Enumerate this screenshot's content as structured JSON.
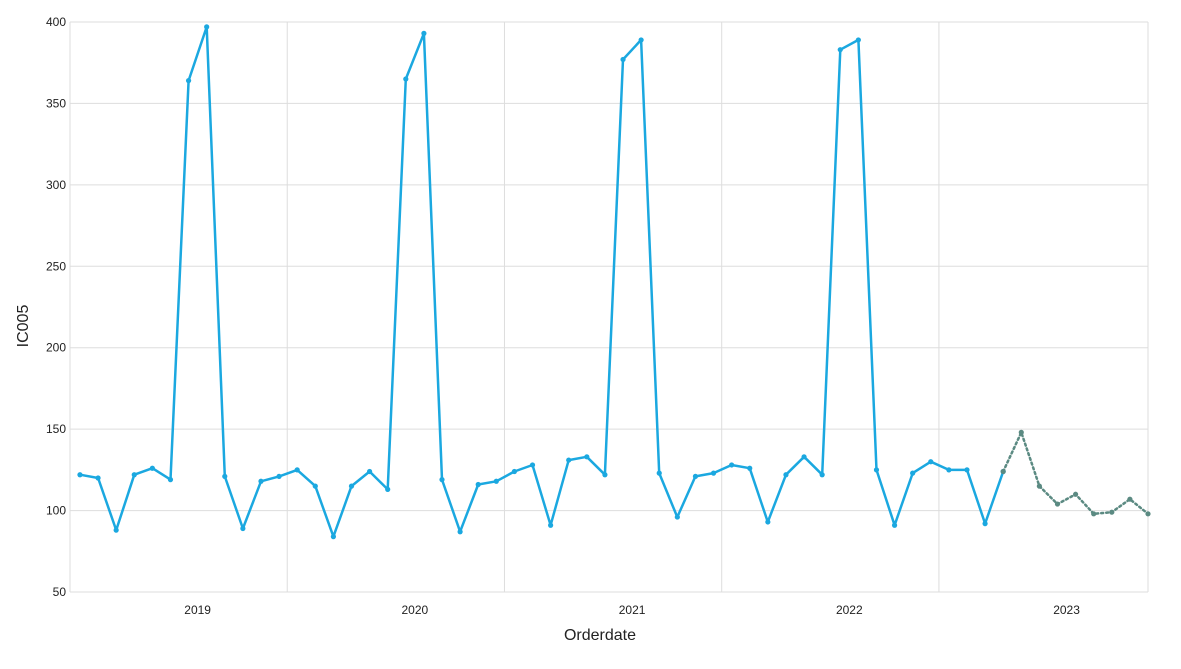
{
  "chart_data": {
    "type": "line",
    "xlabel": "Orderdate",
    "ylabel": "IC005",
    "ylim": [
      50,
      400
    ],
    "y_ticks": [
      50,
      100,
      150,
      200,
      250,
      300,
      350,
      400
    ],
    "x_tick_labels": [
      "2019",
      "2020",
      "2021",
      "2022",
      "2023"
    ],
    "grid": true,
    "colors": {
      "actual": "#1ba8e0",
      "forecast": "#5b8a82",
      "grid": "#dddddd"
    },
    "series": [
      {
        "style": "solid",
        "x": [
          "2018-07",
          "2018-08",
          "2018-09",
          "2018-10",
          "2018-11",
          "2018-12",
          "2019-01",
          "2019-02",
          "2019-03",
          "2019-04",
          "2019-05",
          "2019-06",
          "2019-07",
          "2019-08",
          "2019-09",
          "2019-10",
          "2019-11",
          "2019-12",
          "2020-01",
          "2020-02",
          "2020-03",
          "2020-04",
          "2020-05",
          "2020-06",
          "2020-07",
          "2020-08",
          "2020-09",
          "2020-10",
          "2020-11",
          "2020-12",
          "2021-01",
          "2021-02",
          "2021-03",
          "2021-04",
          "2021-05",
          "2021-06",
          "2021-07",
          "2021-08",
          "2021-09",
          "2021-10",
          "2021-11",
          "2021-12",
          "2022-01",
          "2022-02",
          "2022-03",
          "2022-04",
          "2022-05",
          "2022-06",
          "2022-07",
          "2022-08",
          "2022-09",
          "2022-10"
        ],
        "values": [
          122,
          120,
          88,
          122,
          126,
          119,
          364,
          397,
          121,
          89,
          118,
          121,
          125,
          115,
          84,
          115,
          124,
          113,
          365,
          393,
          119,
          87,
          116,
          118,
          124,
          128,
          91,
          131,
          133,
          122,
          377,
          389,
          123,
          96,
          121,
          123,
          128,
          126,
          93,
          122,
          133,
          122,
          383,
          389,
          125,
          91,
          123,
          130,
          125,
          125,
          92,
          124
        ]
      },
      {
        "style": "dotted",
        "x": [
          "2022-10",
          "2022-11",
          "2022-12",
          "2023-01",
          "2023-02",
          "2023-03",
          "2023-04",
          "2023-05",
          "2023-06"
        ],
        "values": [
          124,
          148,
          115,
          104,
          110,
          98,
          99,
          107,
          98
        ]
      }
    ]
  }
}
